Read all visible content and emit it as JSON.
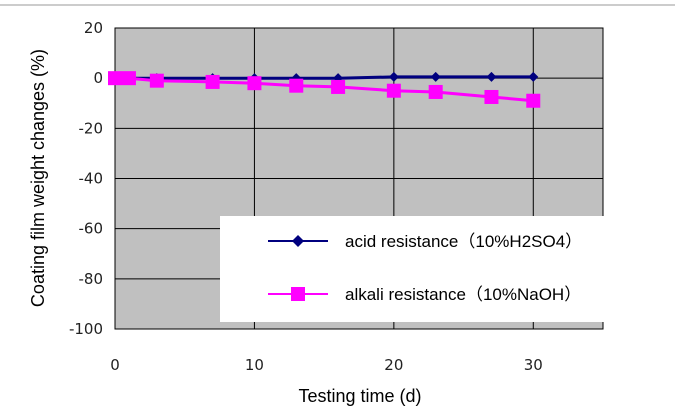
{
  "colors": {
    "plot_background": "#c0c0c0",
    "grid": "#000000",
    "acid_series": "#00007f",
    "alkali_series": "#ff00ff",
    "legend_background": "#ffffff"
  },
  "chart_data": {
    "type": "line",
    "xlabel": "Testing time (d)",
    "ylabel": "Coating film weight changes (%)",
    "xlim": [
      0,
      35
    ],
    "ylim": [
      -100,
      20
    ],
    "x_ticks": [
      "0",
      "10",
      "20",
      "30"
    ],
    "y_ticks": [
      "20",
      "0",
      "-20",
      "-40",
      "-60",
      "-80",
      "-100"
    ],
    "grid": true,
    "legend_position": "lower-right",
    "series": [
      {
        "name": "acid resistance（10%H2SO4）",
        "marker": "diamond",
        "x": [
          0,
          1,
          3,
          7,
          10,
          13,
          16,
          20,
          23,
          27,
          30
        ],
        "y": [
          0,
          0,
          0,
          0,
          0,
          0,
          0,
          0.5,
          0.5,
          0.5,
          0.5
        ]
      },
      {
        "name": "alkali resistance（10%NaOH）",
        "marker": "square",
        "x": [
          0,
          1,
          3,
          7,
          10,
          13,
          16,
          20,
          23,
          27,
          30
        ],
        "y": [
          0,
          0,
          -1,
          -1.5,
          -2,
          -3,
          -3.5,
          -5,
          -5.5,
          -7.5,
          -9
        ]
      }
    ]
  }
}
